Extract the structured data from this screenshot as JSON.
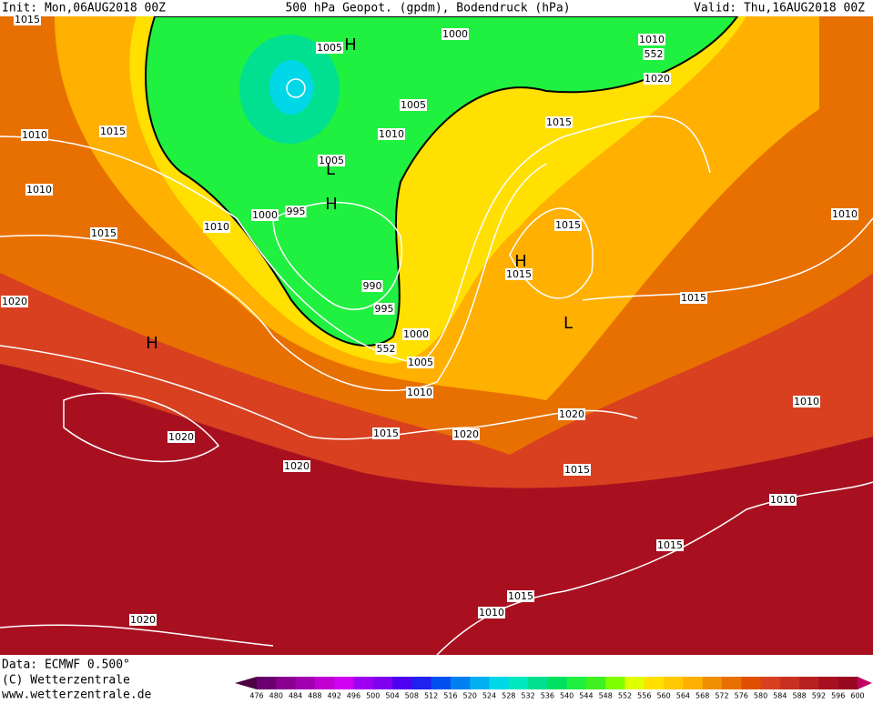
{
  "header": {
    "init": "Init: Mon,06AUG2018 00Z",
    "title": "500 hPa Geopot. (gpdm), Bodendruck (hPa)",
    "valid": "Valid: Thu,16AUG2018 00Z"
  },
  "footer": {
    "data": "Data: ECMWF  0.500°",
    "copyright": "(C) Wetterzentrale",
    "url": "www.wetterzentrale.de"
  },
  "isobar_labels": [
    "1015",
    "1005",
    "1000",
    "1010",
    "552",
    "1020",
    "1015",
    "1010",
    "1005",
    "1010",
    "1015",
    "1005",
    "1010",
    "995",
    "1000",
    "1010",
    "1015",
    "1015",
    "1010",
    "1015",
    "1020",
    "990",
    "995",
    "1015",
    "1000",
    "552",
    "1005",
    "1010",
    "1010",
    "1020",
    "1015",
    "1020",
    "1020",
    "1020",
    "1015",
    "1010",
    "1015",
    "1015",
    "1010",
    "1020"
  ],
  "pressure_centers": [
    "H",
    "H",
    "H",
    "H",
    "L",
    "L"
  ],
  "colorbar": {
    "labels": [
      476,
      480,
      484,
      488,
      492,
      496,
      500,
      504,
      508,
      512,
      516,
      520,
      524,
      528,
      532,
      536,
      540,
      544,
      548,
      552,
      556,
      560,
      564,
      568,
      572,
      576,
      580,
      584,
      588,
      592,
      596,
      600
    ],
    "colors": [
      "#4b0040",
      "#6a0070",
      "#8a0090",
      "#a000b0",
      "#c000d0",
      "#d000f0",
      "#a000f0",
      "#8000f0",
      "#5000f0",
      "#2020f0",
      "#0050f0",
      "#0080f0",
      "#00b0f0",
      "#00d8e8",
      "#00e8c0",
      "#00e090",
      "#00e060",
      "#20f040",
      "#40f020",
      "#80ff00",
      "#e0ff00",
      "#ffe000",
      "#ffc800",
      "#ffb000",
      "#f09000",
      "#e87000",
      "#e05000",
      "#d84020",
      "#c83020",
      "#b82020",
      "#a81020",
      "#980820",
      "#c00060"
    ]
  }
}
